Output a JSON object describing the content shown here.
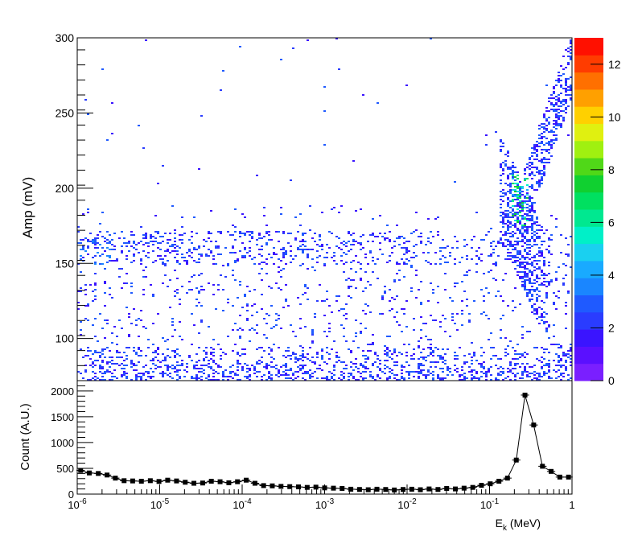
{
  "colors": {
    "palette": [
      "#7a1fff",
      "#5a10ff",
      "#3a14ff",
      "#2a3cff",
      "#1f5aff",
      "#1a86ff",
      "#19aaff",
      "#1ad0f0",
      "#00f0c8",
      "#00e890",
      "#00e060",
      "#10d030",
      "#50d818",
      "#a0f010",
      "#e0f010",
      "#ffd000",
      "#ffa000",
      "#ff7000",
      "#ff3c00",
      "#ff1000"
    ],
    "curve": "#000000"
  },
  "chart_data": [
    {
      "type": "heatmap",
      "ylabel": "Amp (mV)",
      "xscale": "log",
      "xlim": [
        1e-06,
        1
      ],
      "ylim": [
        72,
        300
      ],
      "y_ticks": [
        "100",
        "150",
        "200",
        "250",
        "300"
      ],
      "colorbar": {
        "range": [
          0,
          13
        ],
        "ticks": [
          "0",
          "2",
          "4",
          "6",
          "8",
          "10",
          "12"
        ]
      },
      "features": [
        {
          "region": "band across full range",
          "y_range": [
            150,
            170
          ],
          "density": "low"
        },
        {
          "region": "low-amplitude floor",
          "y_range": [
            72,
            95
          ],
          "density": "moderate"
        },
        {
          "region": "peak cluster",
          "x_range": [
            0.18,
            0.3
          ],
          "y_range": [
            175,
            210
          ],
          "max_count": 5
        },
        {
          "region": "rising tail",
          "x_range": [
            0.3,
            1
          ],
          "y_range": [
            180,
            280
          ],
          "density": "low"
        }
      ]
    },
    {
      "type": "line",
      "ylabel": "Count (A.U.)",
      "xlabel": "E_k (MeV)",
      "xscale": "log",
      "xlim": [
        1e-06,
        1
      ],
      "ylim": [
        0,
        2200
      ],
      "y_ticks": [
        "0",
        "500",
        "1000",
        "1500",
        "2000"
      ],
      "x_ticks": [
        "10^-6",
        "10^-5",
        "10^-4",
        "10^-3",
        "10^-2",
        "10^-1",
        "1"
      ],
      "series": [
        {
          "x": [
            1.1e-06,
            1.4e-06,
            1.8e-06,
            2.3e-06,
            2.9e-06,
            3.7e-06,
            4.7e-06,
            6e-06,
            7.7e-06,
            9.8e-06,
            1.25e-05,
            1.6e-05,
            2.04e-05,
            2.6e-05,
            3.32e-05,
            4.23e-05,
            5.4e-05,
            6.89e-05,
            8.78e-05,
            0.000112,
            0.000143,
            0.000182,
            0.000232,
            0.000296,
            0.000378,
            0.000482,
            0.000615,
            0.000784,
            0.001,
            0.00128,
            0.00163,
            0.00208,
            0.00265,
            0.00338,
            0.00431,
            0.0055,
            0.00701,
            0.00894,
            0.0114,
            0.0145,
            0.0185,
            0.0237,
            0.0302,
            0.0385,
            0.0491,
            0.0626,
            0.0798,
            0.102,
            0.13,
            0.165,
            0.211,
            0.269,
            0.343,
            0.438,
            0.558,
            0.712,
            0.908
          ],
          "y": [
            460,
            410,
            400,
            370,
            310,
            260,
            255,
            250,
            260,
            245,
            270,
            255,
            230,
            210,
            215,
            250,
            240,
            220,
            240,
            270,
            210,
            165,
            160,
            150,
            145,
            140,
            130,
            135,
            120,
            115,
            110,
            95,
            90,
            85,
            95,
            90,
            80,
            90,
            95,
            85,
            100,
            90,
            110,
            100,
            115,
            130,
            170,
            200,
            250,
            310,
            660,
            1920,
            1340,
            540,
            440,
            330,
            330
          ]
        }
      ]
    }
  ]
}
